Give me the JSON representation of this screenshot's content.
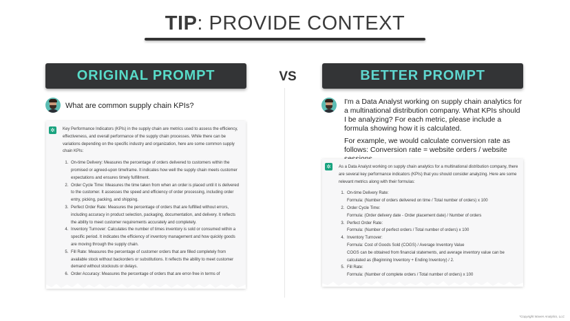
{
  "header": {
    "title_bold": "TIP",
    "title_rest": ": PROVIDE CONTEXT",
    "vs": "VS"
  },
  "left": {
    "banner": "ORIGINAL PROMPT",
    "question": "What are common supply chain KPIs?",
    "answer_intro": "Key Performance Indicators (KPIs) in the supply chain are metrics used to assess the efficiency, effectiveness, and overall performance of the supply chain processes. While there can be variations depending on the specific industry and organization, here are some common supply chain KPIs:",
    "items": [
      "On-time Delivery: Measures the percentage of orders delivered to customers within the promised or agreed-upon timeframe. It indicates how well the supply chain meets customer expectations and ensures timely fulfillment.",
      "Order Cycle Time: Measures the time taken from when an order is placed until it is delivered to the customer. It assesses the speed and efficiency of order processing, including order entry, picking, packing, and shipping.",
      "Perfect Order Rate: Measures the percentage of orders that are fulfilled without errors, including accuracy in product selection, packaging, documentation, and delivery. It reflects the ability to meet customer requirements accurately and completely.",
      "Inventory Turnover: Calculates the number of times inventory is sold or consumed within a specific period. It indicates the efficiency of inventory management and how quickly goods are moving through the supply chain.",
      "Fill Rate: Measures the percentage of customer orders that are filled completely from available stock without backorders or substitutions. It reflects the ability to meet customer demand without stockouts or delays.",
      "Order Accuracy: Measures the percentage of orders that are error-free in terms of"
    ]
  },
  "right": {
    "banner": "BETTER PROMPT",
    "question_p1": "I'm a Data Analyst working on supply chain analytics for a multinational distribution company. What KPIs should I be analyzing? For each metric, please include a formula showing how it is calculated.",
    "question_p2": "For example, we would calculate conversion rate as follows: Conversion rate = website orders / website sessions",
    "answer_intro": "As a Data Analyst working on supply chain analytics for a multinational distribution company, there are several key performance indicators (KPIs) that you should consider analyzing. Here are some relevant metrics along with their formulas:",
    "items": [
      {
        "name": "On-time Delivery Rate:",
        "lines": [
          "Formula: (Number of orders delivered on time / Total number of orders) x 100"
        ]
      },
      {
        "name": "Order Cycle Time:",
        "lines": [
          "Formula: (Order delivery date - Order placement date) / Number of orders"
        ]
      },
      {
        "name": "Perfect Order Rate:",
        "lines": [
          "Formula: (Number of perfect orders / Total number of orders) x 100"
        ]
      },
      {
        "name": "Inventory Turnover:",
        "lines": [
          "Formula: Cost of Goods Sold (COGS) / Average Inventory Value",
          "COGS can be obtained from financial statements, and average inventory value can be calculated as (Beginning Inventory + Ending Inventory) / 2."
        ]
      },
      {
        "name": "Fill Rate:",
        "lines": [
          "Formula: (Number of complete orders / Total number of orders) x 100"
        ]
      }
    ]
  },
  "footer": {
    "copyright": "*Copyright Maven Analytics, LLC"
  },
  "colors": {
    "banner_bg": "#333436",
    "banner_text": "#58dbc8",
    "gpt_green": "#19a37f"
  },
  "icons": [
    "user-avatar-icon",
    "chatgpt-logo-icon"
  ]
}
